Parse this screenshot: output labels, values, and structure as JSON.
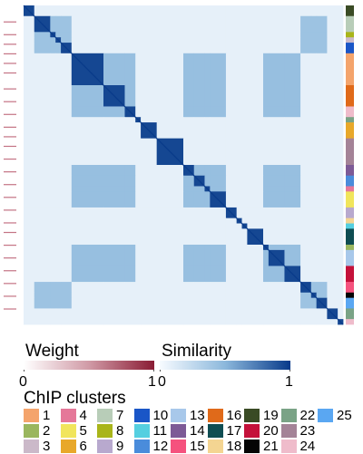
{
  "chart_data": {
    "type": "heatmap",
    "title": "",
    "description_axes": "",
    "matrix_size": 27,
    "block_sizes": [
      2,
      3,
      1,
      1,
      2,
      6,
      4,
      2,
      1,
      3,
      5,
      2,
      2,
      1,
      3,
      2,
      1,
      1,
      3,
      1,
      3,
      3,
      2,
      1,
      2,
      2,
      1
    ],
    "block_cluster": [
      19,
      7,
      8,
      3,
      10,
      1,
      16,
      24,
      22,
      6,
      23,
      14,
      12,
      4,
      5,
      9,
      18,
      11,
      17,
      2,
      13,
      20,
      15,
      21,
      25,
      22,
      24
    ],
    "similarity_range": [
      0,
      1
    ],
    "weight_range": [
      0,
      1
    ],
    "weight_marks": [
      0.05,
      0.09,
      0.12,
      0.15,
      0.18,
      0.21,
      0.26,
      0.3,
      0.34,
      0.38,
      0.41,
      0.44,
      0.48,
      0.52,
      0.56,
      0.6,
      0.64,
      0.68,
      0.71,
      0.75,
      0.79,
      0.83,
      0.87,
      0.91,
      0.95
    ],
    "groups": {
      "A": [
        5,
        6,
        7,
        11,
        12,
        13,
        14,
        19,
        20,
        21
      ],
      "B": [
        1,
        2,
        3,
        4,
        22,
        23,
        24
      ]
    },
    "group_similarity": {
      "within_A": 0.45,
      "within_B": 0.42,
      "between": 0.08,
      "diagonal": 0.95
    }
  },
  "legend": {
    "weight_title": "Weight",
    "weight_min": "0",
    "weight_max": "1",
    "similarity_title": "Similarity",
    "similarity_min": "0",
    "similarity_max": "1",
    "clusters_title": "ChIP clusters"
  },
  "clusters": [
    {
      "id": "1",
      "color": "#f4a46c"
    },
    {
      "id": "2",
      "color": "#9ab65e"
    },
    {
      "id": "3",
      "color": "#cbb9c9"
    },
    {
      "id": "4",
      "color": "#e57899"
    },
    {
      "id": "5",
      "color": "#f1e55c"
    },
    {
      "id": "6",
      "color": "#e8a82a"
    },
    {
      "id": "7",
      "color": "#b8cdb8"
    },
    {
      "id": "8",
      "color": "#a9b51a"
    },
    {
      "id": "9",
      "color": "#b8a9ce"
    },
    {
      "id": "10",
      "color": "#1a56c7"
    },
    {
      "id": "11",
      "color": "#55cfe0"
    },
    {
      "id": "12",
      "color": "#4a8cdb"
    },
    {
      "id": "13",
      "color": "#a8c8ea"
    },
    {
      "id": "14",
      "color": "#7d5a96"
    },
    {
      "id": "15",
      "color": "#f5527e"
    },
    {
      "id": "16",
      "color": "#e06a1a"
    },
    {
      "id": "17",
      "color": "#0f4d52"
    },
    {
      "id": "18",
      "color": "#f4d592"
    },
    {
      "id": "19",
      "color": "#3a4b25"
    },
    {
      "id": "20",
      "color": "#c4113a"
    },
    {
      "id": "21",
      "color": "#050505"
    },
    {
      "id": "22",
      "color": "#7aa386"
    },
    {
      "id": "23",
      "color": "#a48397"
    },
    {
      "id": "24",
      "color": "#efbccb"
    },
    {
      "id": "25",
      "color": "#5aa7f2"
    }
  ]
}
